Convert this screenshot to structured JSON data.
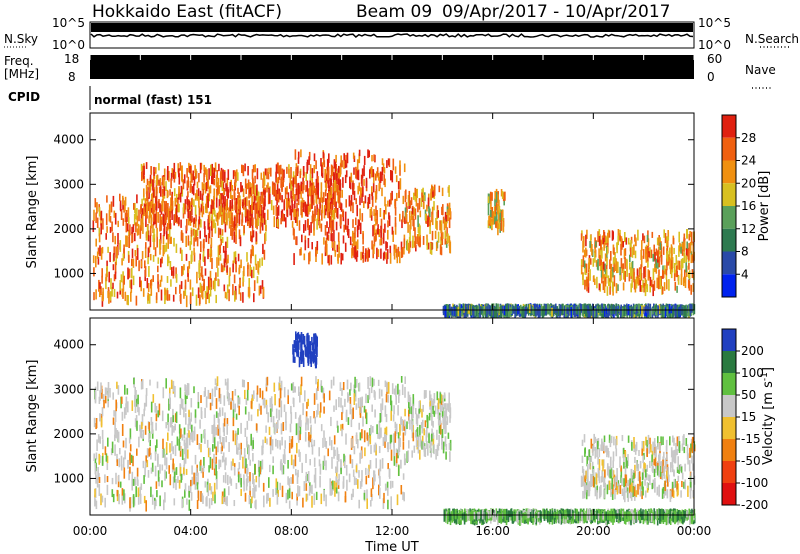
{
  "header": {
    "title": "Hokkaido East (fitACF)",
    "beam": "Beam 09",
    "dates": "09/Apr/2017 - 10/Apr/2017"
  },
  "noise_panel": {
    "left_label": "N.Sky",
    "right_label": "N.Search",
    "left_ticks": [
      "10^5",
      "10^0"
    ],
    "right_ticks": [
      "10^5",
      "10^0"
    ]
  },
  "freq_panel": {
    "left_label_1": "Freq.",
    "left_label_2": "[MHz]",
    "right_label": "Nave",
    "left_ticks": [
      "18",
      "8"
    ],
    "right_ticks": [
      "60",
      "0"
    ]
  },
  "cpid_panel": {
    "label": "CPID",
    "mode_text": "normal (fast) 151"
  },
  "x_axis": {
    "label": "Time UT",
    "ticks": [
      "00:00",
      "04:00",
      "08:00",
      "12:00",
      "16:00",
      "20:00",
      "00:00"
    ]
  },
  "chart_data": [
    {
      "type": "heatmap",
      "title": "",
      "xlabel": "Time UT",
      "ylabel": "Slant Range [km]",
      "x_unit": "hours UT",
      "xlim": [
        0,
        24
      ],
      "ylim": [
        180,
        4600
      ],
      "y_ticks": [
        "1000",
        "2000",
        "3000",
        "4000"
      ],
      "colorbar": {
        "label": "Power [dB]",
        "ticks": [
          "4",
          "8",
          "12",
          "16",
          "20",
          "24",
          "28"
        ],
        "range": [
          0,
          32
        ],
        "colors": [
          "#0022ee",
          "#2a4aa8",
          "#2e7a50",
          "#5aa05a",
          "#d8c020",
          "#f09010",
          "#f06010",
          "#e02010"
        ]
      },
      "regions": [
        {
          "x": [
            0.1,
            7.0
          ],
          "y": [
            500,
            2800
          ],
          "level": 24
        },
        {
          "x": [
            2.0,
            10.0
          ],
          "y": [
            2200,
            3500
          ],
          "level": 26
        },
        {
          "x": [
            8.0,
            12.5
          ],
          "y": [
            1400,
            3800
          ],
          "level": 27
        },
        {
          "x": [
            12.5,
            14.3
          ],
          "y": [
            1600,
            3000
          ],
          "level": 22
        },
        {
          "x": [
            15.8,
            16.5
          ],
          "y": [
            2100,
            2900
          ],
          "level": 20
        },
        {
          "x": [
            19.5,
            24.0
          ],
          "y": [
            700,
            2000
          ],
          "level": 22
        },
        {
          "x": [
            14.0,
            24.0
          ],
          "y": [
            200,
            330
          ],
          "level": 10
        }
      ]
    },
    {
      "type": "heatmap",
      "title": "",
      "xlabel": "Time UT",
      "ylabel": "Slant Range [km]",
      "x_unit": "hours UT",
      "xlim": [
        0,
        24
      ],
      "ylim": [
        180,
        4600
      ],
      "y_ticks": [
        "1000",
        "2000",
        "3000",
        "4000"
      ],
      "colorbar": {
        "label": "Velocity [m s^-1]",
        "ticks": [
          "200",
          "100",
          "50",
          "15",
          "-15",
          "-50",
          "-100",
          "-200"
        ],
        "range": [
          -250,
          250
        ],
        "colors": [
          "#2040c0",
          "#2a7a40",
          "#60c040",
          "#c8c8c8",
          "#f0c030",
          "#f08010",
          "#f04010",
          "#e01010"
        ]
      },
      "regions": [
        {
          "x": [
            0.1,
            12.5
          ],
          "y": [
            500,
            3300
          ],
          "velocity": 0
        },
        {
          "x": [
            8.0,
            9.0
          ],
          "y": [
            3700,
            4300
          ],
          "velocity": 200
        },
        {
          "x": [
            12.5,
            14.3
          ],
          "y": [
            1600,
            3000
          ],
          "velocity": 10
        },
        {
          "x": [
            19.5,
            24.0
          ],
          "y": [
            700,
            2000
          ],
          "velocity": 0
        },
        {
          "x": [
            14.0,
            24.0
          ],
          "y": [
            200,
            330
          ],
          "velocity": 60
        }
      ]
    }
  ]
}
